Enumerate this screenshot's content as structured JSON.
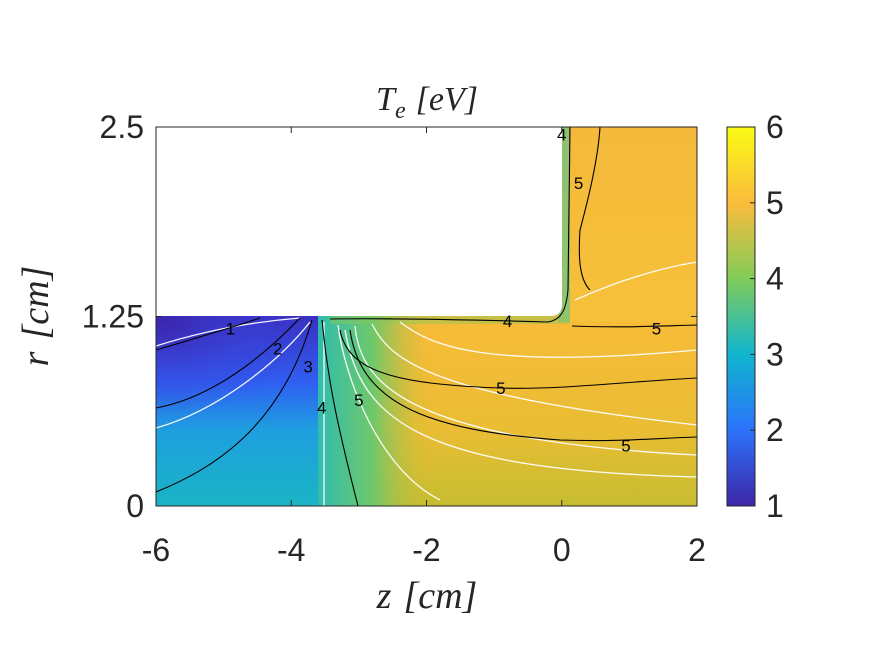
{
  "chart_data": {
    "type": "heatmap",
    "title": "T_e [eV]",
    "title_parts": {
      "symbol": "T",
      "subscript": "e",
      "unit": "[eV]"
    },
    "xlabel": "z [cm]",
    "xlabel_parts": {
      "symbol": "z",
      "unit": "[cm]"
    },
    "ylabel": "r [cm]",
    "ylabel_parts": {
      "symbol": "r",
      "unit": "[cm]"
    },
    "xlim": [
      -6,
      2
    ],
    "ylim": [
      0,
      2.5
    ],
    "x_ticks": [
      "-6",
      "-4",
      "-2",
      "0",
      "2"
    ],
    "y_ticks": [
      "0",
      "1.25",
      "2.5"
    ],
    "colorbar": {
      "range": [
        1,
        6
      ],
      "ticks": [
        "1",
        "2",
        "3",
        "4",
        "5",
        "6"
      ]
    },
    "geometry_mask": {
      "z_range": [
        -6,
        0
      ],
      "r_range": [
        1.25,
        2.5
      ]
    },
    "contour_labels": [
      {
        "text": "1",
        "z": -4.9,
        "r": 1.17
      },
      {
        "text": "2",
        "z": -4.2,
        "r": 1.04
      },
      {
        "text": "3",
        "z": -3.75,
        "r": 0.92
      },
      {
        "text": "4",
        "z": -3.55,
        "r": 0.65
      },
      {
        "text": "5",
        "z": -3.0,
        "r": 0.7
      },
      {
        "text": "4",
        "z": -0.8,
        "r": 1.22
      },
      {
        "text": "5",
        "z": 1.4,
        "r": 1.17
      },
      {
        "text": "5",
        "z": -0.9,
        "r": 0.78
      },
      {
        "text": "5",
        "z": 0.95,
        "r": 0.4
      },
      {
        "text": "5",
        "z": 0.25,
        "r": 2.13
      },
      {
        "text": "4",
        "z": 0.0,
        "r": 2.45
      }
    ]
  }
}
